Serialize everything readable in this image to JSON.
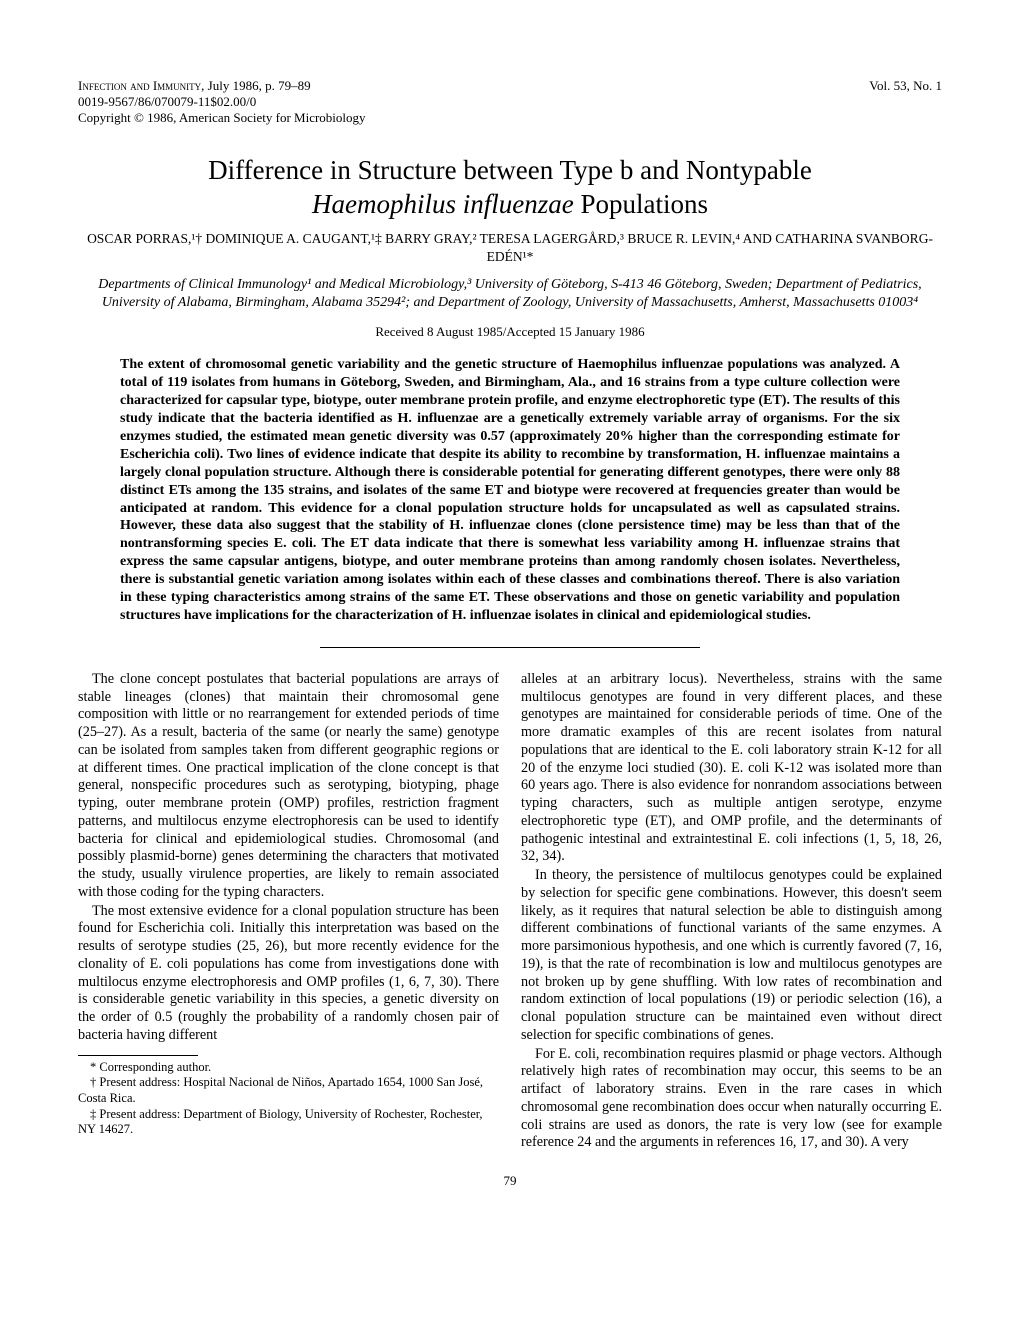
{
  "journal_header": {
    "line1_caps": "Infection and Immunity,",
    "line1_rest": " July 1986, p. 79–89",
    "line2": "0019-9567/86/070079-11$02.00/0",
    "line3": "Copyright © 1986, American Society for Microbiology",
    "volume": "Vol. 53, No. 1"
  },
  "title": {
    "line1": "Difference in Structure between Type b and Nontypable",
    "line2_italic": "Haemophilus influenzae",
    "line2_rest": " Populations"
  },
  "authors": "OSCAR PORRAS,¹† DOMINIQUE A. CAUGANT,¹‡ BARRY GRAY,² TERESA LAGERGÅRD,³ BRUCE R. LEVIN,⁴ AND CATHARINA SVANBORG-EDÉN¹*",
  "affiliations": "Departments of Clinical Immunology¹ and Medical Microbiology,³ University of Göteborg, S-413 46 Göteborg, Sweden; Department of Pediatrics, University of Alabama, Birmingham, Alabama 35294²; and Department of Zoology, University of Massachusetts, Amherst, Massachusetts 01003⁴",
  "received": "Received 8 August 1985/Accepted 15 January 1986",
  "abstract": "The extent of chromosomal genetic variability and the genetic structure of Haemophilus influenzae populations was analyzed. A total of 119 isolates from humans in Göteborg, Sweden, and Birmingham, Ala., and 16 strains from a type culture collection were characterized for capsular type, biotype, outer membrane protein profile, and enzyme electrophoretic type (ET). The results of this study indicate that the bacteria identified as H. influenzae are a genetically extremely variable array of organisms. For the six enzymes studied, the estimated mean genetic diversity was 0.57 (approximately 20% higher than the corresponding estimate for Escherichia coli). Two lines of evidence indicate that despite its ability to recombine by transformation, H. influenzae maintains a largely clonal population structure. Although there is considerable potential for generating different genotypes, there were only 88 distinct ETs among the 135 strains, and isolates of the same ET and biotype were recovered at frequencies greater than would be anticipated at random. This evidence for a clonal population structure holds for uncapsulated as well as capsulated strains. However, these data also suggest that the stability of H. influenzae clones (clone persistence time) may be less than that of the nontransforming species E. coli. The ET data indicate that there is somewhat less variability among H. influenzae strains that express the same capsular antigens, biotype, and outer membrane proteins than among randomly chosen isolates. Nevertheless, there is substantial genetic variation among isolates within each of these classes and combinations thereof. There is also variation in these typing characteristics among strains of the same ET. These observations and those on genetic variability and population structures have implications for the characterization of H. influenzae isolates in clinical and epidemiological studies.",
  "body": {
    "col1": {
      "p1": "The clone concept postulates that bacterial populations are arrays of stable lineages (clones) that maintain their chromosomal gene composition with little or no rearrangement for extended periods of time (25–27). As a result, bacteria of the same (or nearly the same) genotype can be isolated from samples taken from different geographic regions or at different times. One practical implication of the clone concept is that general, nonspecific procedures such as serotyping, biotyping, phage typing, outer membrane protein (OMP) profiles, restriction fragment patterns, and multilocus enzyme electrophoresis can be used to identify bacteria for clinical and epidemiological studies. Chromosomal (and possibly plasmid-borne) genes determining the characters that motivated the study, usually virulence properties, are likely to remain associated with those coding for the typing characters.",
      "p2": "The most extensive evidence for a clonal population structure has been found for Escherichia coli. Initially this interpretation was based on the results of serotype studies (25, 26), but more recently evidence for the clonality of E. coli populations has come from investigations done with multilocus enzyme electrophoresis and OMP profiles (1, 6, 7, 30). There is considerable genetic variability in this species, a genetic diversity on the order of 0.5 (roughly the probability of a randomly chosen pair of bacteria having different"
    },
    "col2": {
      "p1": "alleles at an arbitrary locus). Nevertheless, strains with the same multilocus genotypes are found in very different places, and these genotypes are maintained for considerable periods of time. One of the more dramatic examples of this are recent isolates from natural populations that are identical to the E. coli laboratory strain K-12 for all 20 of the enzyme loci studied (30). E. coli K-12 was isolated more than 60 years ago. There is also evidence for nonrandom associations between typing characters, such as multiple antigen serotype, enzyme electrophoretic type (ET), and OMP profile, and the determinants of pathogenic intestinal and extraintestinal E. coli infections (1, 5, 18, 26, 32, 34).",
      "p2": "In theory, the persistence of multilocus genotypes could be explained by selection for specific gene combinations. However, this doesn't seem likely, as it requires that natural selection be able to distinguish among different combinations of functional variants of the same enzymes. A more parsimonious hypothesis, and one which is currently favored (7, 16, 19), is that the rate of recombination is low and multilocus genotypes are not broken up by gene shuffling. With low rates of recombination and random extinction of local populations (19) or periodic selection (16), a clonal population structure can be maintained even without direct selection for specific combinations of genes.",
      "p3": "For E. coli, recombination requires plasmid or phage vectors. Although relatively high rates of recombination may occur, this seems to be an artifact of laboratory strains. Even in the rare cases in which chromosomal gene recombination does occur when naturally occurring E. coli strains are used as donors, the rate is very low (see for example reference 24 and the arguments in references 16, 17, and 30). A very"
    }
  },
  "footnotes": {
    "f1": "* Corresponding author.",
    "f2": "† Present address: Hospital Nacional de Niños, Apartado 1654, 1000 San José, Costa Rica.",
    "f3": "‡ Present address: Department of Biology, University of Rochester, Rochester, NY 14627."
  },
  "page_number": "79"
}
